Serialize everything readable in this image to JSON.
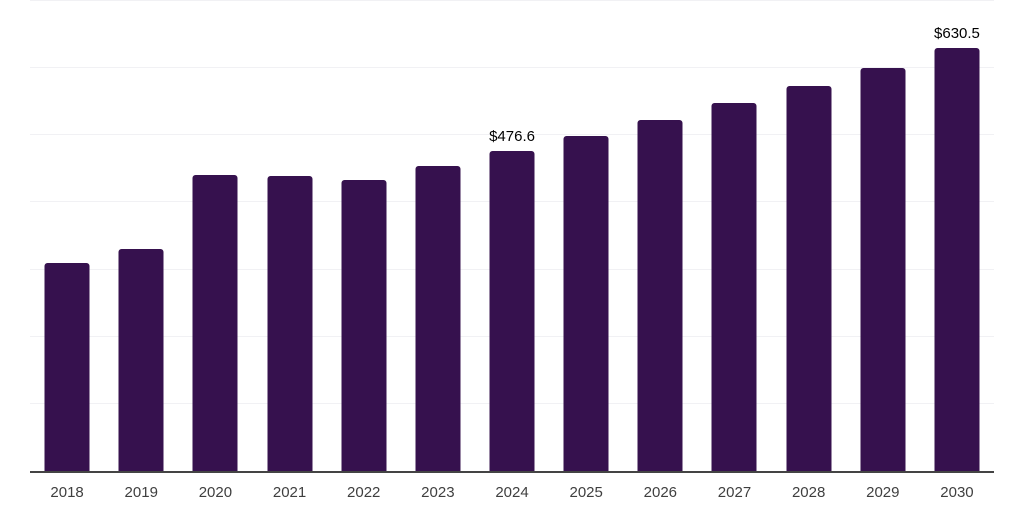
{
  "chart_data": {
    "type": "bar",
    "title": "",
    "xlabel": "",
    "ylabel": "",
    "categories": [
      "2018",
      "2019",
      "2020",
      "2021",
      "2022",
      "2023",
      "2024",
      "2025",
      "2026",
      "2027",
      "2028",
      "2029",
      "2030"
    ],
    "values": [
      310,
      330,
      441,
      440,
      434,
      455,
      476.6,
      499,
      523,
      548,
      573,
      601,
      630.5
    ],
    "data_labels": [
      {
        "category": "2024",
        "text": "$476.6"
      },
      {
        "category": "2030",
        "text": "$630.5"
      }
    ],
    "ylim": [
      0,
      700
    ],
    "gridline_interval": 100,
    "grid": "horizontal-only",
    "y_tick_labels_shown": false,
    "legend_position": "none",
    "colors": {
      "bar": "#36114E",
      "background": "#ffffff",
      "gridline": "#f1f1f4",
      "axis_line": "#444444",
      "x_tick_label": "#3f3f3f",
      "data_label": "#000000"
    }
  }
}
